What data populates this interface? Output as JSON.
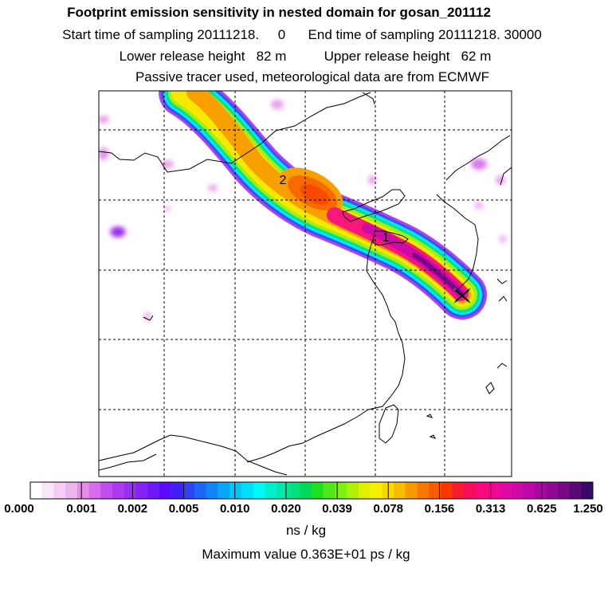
{
  "header": {
    "title": "Footprint emission sensitivity in nested domain for gosan_201112",
    "sampling": "Start time of sampling 20111218.     0      End time of sampling 20111218. 30000",
    "release": "Lower release height   82 m          Upper release height   62 m",
    "tracer": "Passive tracer used, meteorological data are from ECMWF"
  },
  "map": {
    "markers": [
      {
        "label": "1"
      },
      {
        "label": "2"
      }
    ],
    "receptor_symbol": "station-cross"
  },
  "colorbar": {
    "labels": [
      "0.000",
      "0.001",
      "0.002",
      "0.005",
      "0.010",
      "0.020",
      "0.039",
      "0.078",
      "0.156",
      "0.313",
      "0.625",
      "1.250"
    ],
    "colors": [
      "#ffffff",
      "#fbe5fb",
      "#f5cdf5",
      "#efb5ef",
      "#e88ae8",
      "#d86bf0",
      "#c44cf0",
      "#b03af0",
      "#9a2ef2",
      "#8422f5",
      "#6e16f8",
      "#5a0cfa",
      "#4420f8",
      "#2f45f5",
      "#1f66f6",
      "#1086f7",
      "#08a6f8",
      "#04c4fa",
      "#00e0fc",
      "#00f8f8",
      "#00f0d0",
      "#00e8a8",
      "#00e080",
      "#00d858",
      "#20e020",
      "#50e818",
      "#80f010",
      "#b0f008",
      "#e0f000",
      "#f8f000",
      "#f8d800",
      "#f8bc00",
      "#f89a00",
      "#f87800",
      "#f85c00",
      "#f83800",
      "#f81c30",
      "#f80c60",
      "#f8087c",
      "#f00890",
      "#e008a0",
      "#d008a8",
      "#c008a8",
      "#a808a0",
      "#900898",
      "#780888",
      "#5a0878",
      "#3c0868"
    ],
    "units": "ns / kg"
  },
  "footer": {
    "max_value": "Maximum value  0.363E+01 ps / kg"
  }
}
